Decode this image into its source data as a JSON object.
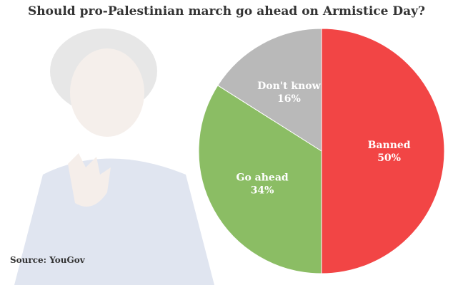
{
  "chart_data": {
    "type": "pie",
    "title": "Should pro-Palestinian march go ahead on Armistice Day?",
    "source": "Source: YouGov",
    "slices": [
      {
        "label": "Banned",
        "percent_text": "50%",
        "value": 50,
        "color": "#f24545"
      },
      {
        "label": "Go ahead",
        "percent_text": "34%",
        "value": 34,
        "color": "#8bbd64"
      },
      {
        "label": "Don't know",
        "percent_text": "16%",
        "value": 16,
        "color": "#b9b9b9"
      }
    ]
  }
}
